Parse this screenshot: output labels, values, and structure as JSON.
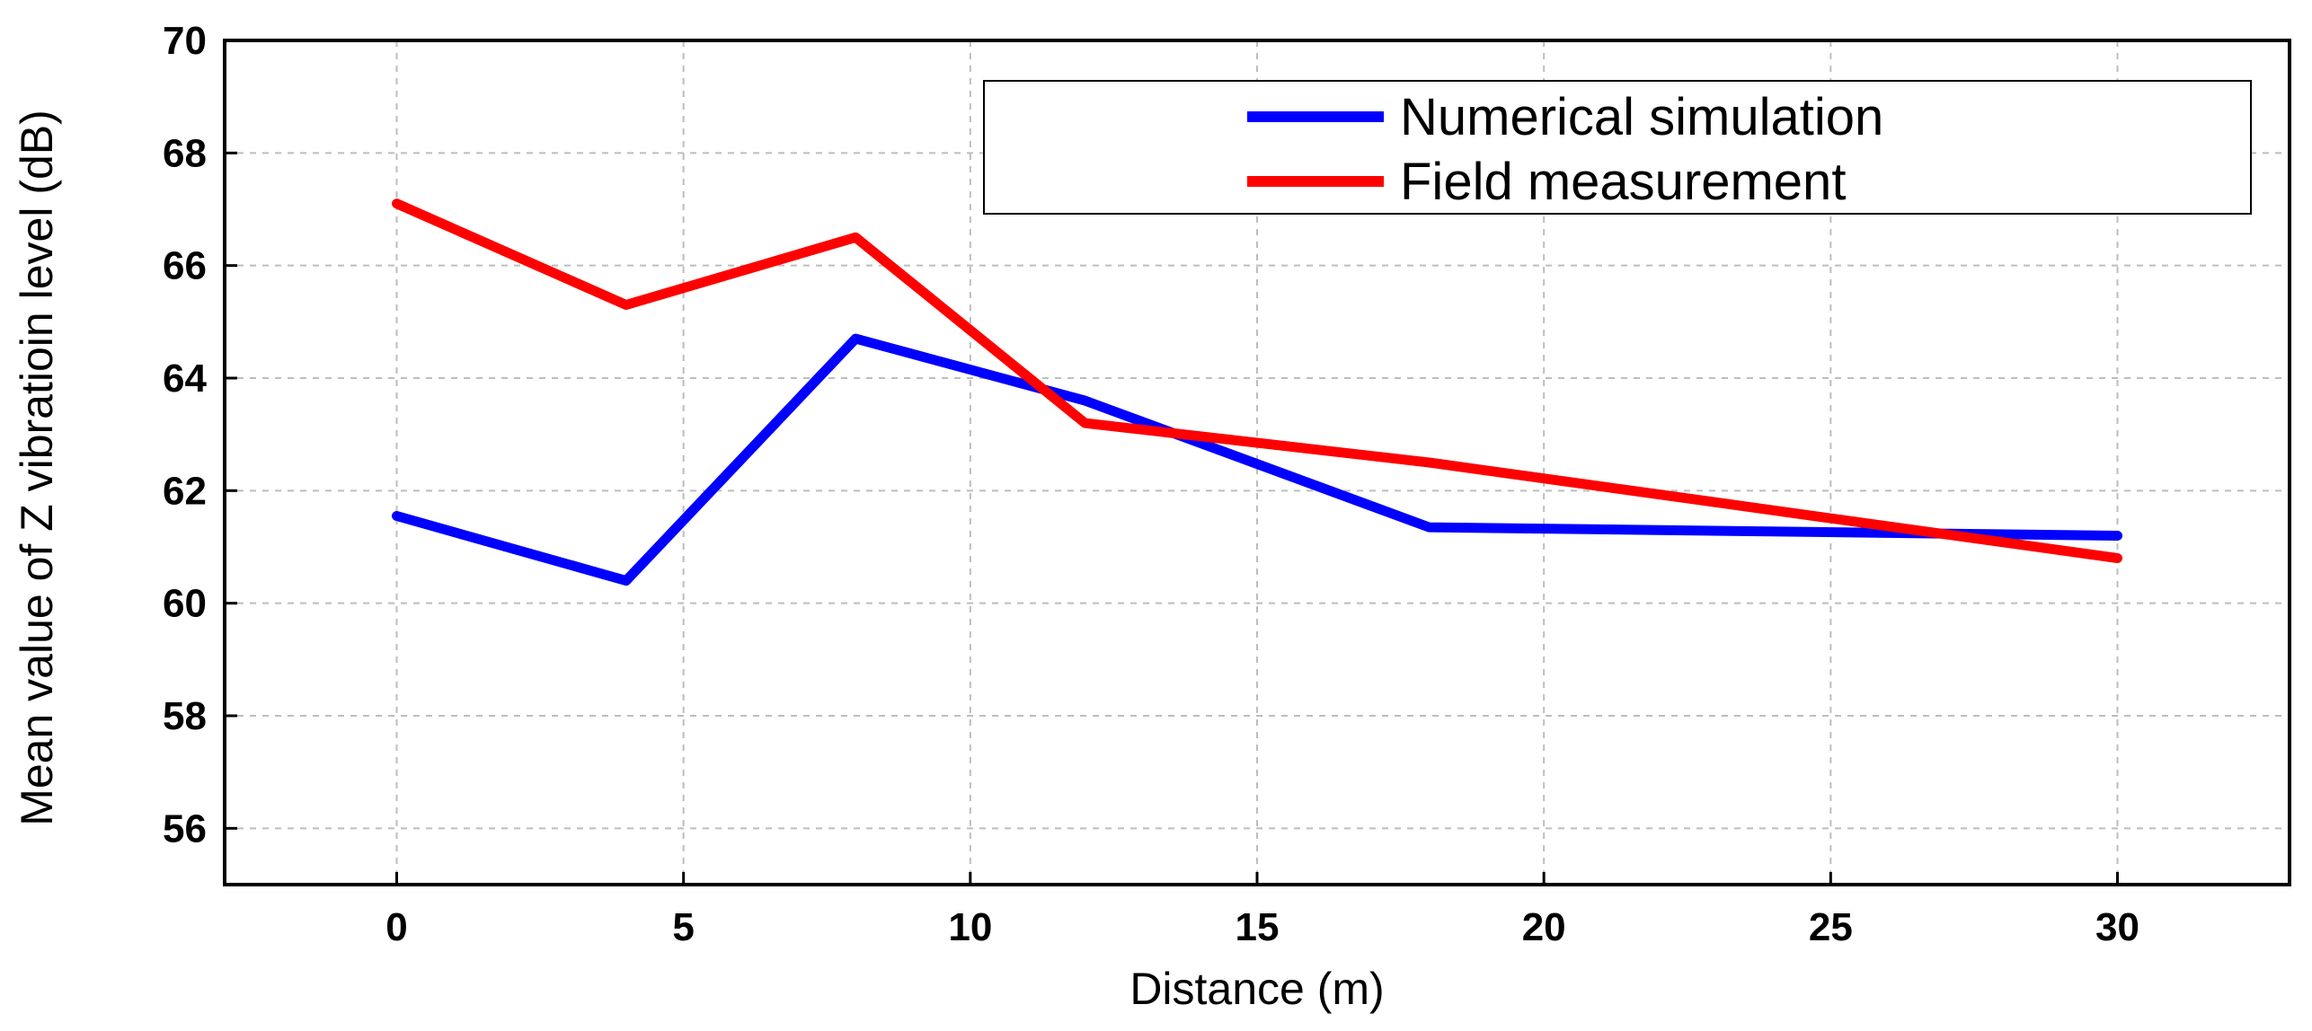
{
  "chart_data": {
    "type": "line",
    "title": "",
    "xlabel": "Distance (m)",
    "ylabel": "Mean value of Z vibratioin level (dB)",
    "xlim": [
      -3,
      33
    ],
    "ylim": [
      55,
      70
    ],
    "xticks": [
      0,
      5,
      10,
      15,
      20,
      25,
      30
    ],
    "yticks": [
      56,
      58,
      60,
      62,
      64,
      66,
      68,
      70
    ],
    "grid": true,
    "legend_position": "top-right",
    "series": [
      {
        "name": "Numerical simulation",
        "color": "#0000ff",
        "x": [
          0,
          4,
          8,
          12,
          18,
          30
        ],
        "y": [
          61.55,
          60.4,
          64.7,
          63.6,
          61.35,
          61.2
        ]
      },
      {
        "name": "Field measurement",
        "color": "#ff0000",
        "x": [
          0,
          4,
          8,
          12,
          18,
          30
        ],
        "y": [
          67.1,
          65.3,
          66.5,
          63.2,
          62.5,
          60.8
        ]
      }
    ]
  }
}
